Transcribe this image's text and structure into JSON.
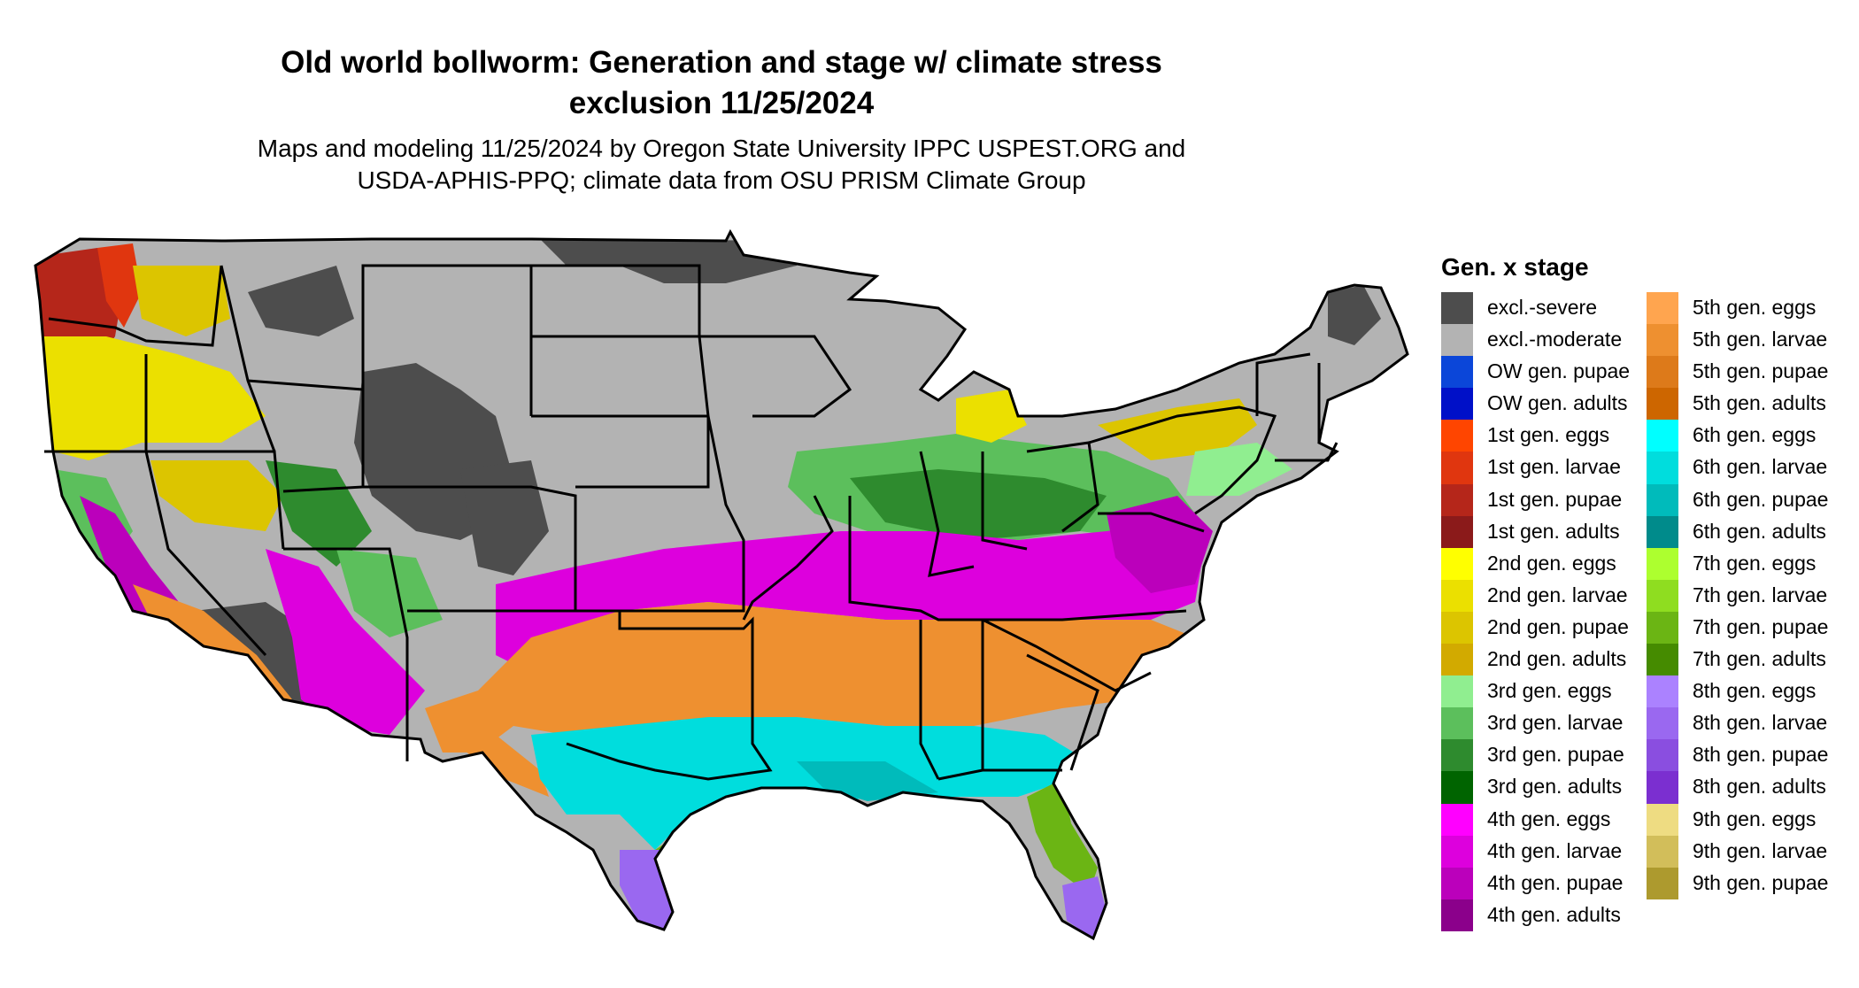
{
  "title": {
    "line1": "Old world bollworm: Generation and stage w/ climate stress",
    "line2": "exclusion 11/25/2024"
  },
  "subtitle": {
    "line1": "Maps and modeling 11/25/2024 by Oregon State University IPPC USPEST.ORG and",
    "line2": "USDA-APHIS-PPQ; climate data from OSU PRISM Climate Group"
  },
  "legend": {
    "title": "Gen. x stage",
    "col1": [
      {
        "label": "excl.-severe",
        "color": "#4d4d4d"
      },
      {
        "label": "excl.-moderate",
        "color": "#b3b3b3"
      },
      {
        "label": "OW gen. pupae",
        "color": "#0b46d9"
      },
      {
        "label": "OW gen. adults",
        "color": "#0010c8"
      },
      {
        "label": "1st gen. eggs",
        "color": "#ff4500"
      },
      {
        "label": "1st gen. larvae",
        "color": "#e0360f"
      },
      {
        "label": "1st gen. pupae",
        "color": "#b5261a"
      },
      {
        "label": "1st gen. adults",
        "color": "#8b1a1a"
      },
      {
        "label": "2nd gen. eggs",
        "color": "#ffff00"
      },
      {
        "label": "2nd gen. larvae",
        "color": "#ebe000"
      },
      {
        "label": "2nd gen. pupae",
        "color": "#dcc500"
      },
      {
        "label": "2nd gen. adults",
        "color": "#d2aa00"
      },
      {
        "label": "3rd gen. eggs",
        "color": "#90ee90"
      },
      {
        "label": "3rd gen. larvae",
        "color": "#5cbf5c"
      },
      {
        "label": "3rd gen. pupae",
        "color": "#2e8b2e"
      },
      {
        "label": "3rd gen. adults",
        "color": "#006400"
      },
      {
        "label": "4th gen. eggs",
        "color": "#ff00ff"
      },
      {
        "label": "4th gen. larvae",
        "color": "#dd00dd"
      },
      {
        "label": "4th gen. pupae",
        "color": "#bb00bb"
      },
      {
        "label": "4th gen. adults",
        "color": "#8b008b"
      }
    ],
    "col2": [
      {
        "label": "5th gen. eggs",
        "color": "#ffa54f"
      },
      {
        "label": "5th gen. larvae",
        "color": "#ee9030"
      },
      {
        "label": "5th gen. pupae",
        "color": "#dd7a1a"
      },
      {
        "label": "5th gen. adults",
        "color": "#cd6600"
      },
      {
        "label": "6th gen. eggs",
        "color": "#00ffff"
      },
      {
        "label": "6th gen. larvae",
        "color": "#00dddd"
      },
      {
        "label": "6th gen. pupae",
        "color": "#00bbbb"
      },
      {
        "label": "6th gen. adults",
        "color": "#008b8b"
      },
      {
        "label": "7th gen. eggs",
        "color": "#adff2f"
      },
      {
        "label": "7th gen. larvae",
        "color": "#8fdd20"
      },
      {
        "label": "7th gen. pupae",
        "color": "#6bb514"
      },
      {
        "label": "7th gen. adults",
        "color": "#458b00"
      },
      {
        "label": "8th gen. eggs",
        "color": "#ab82ff"
      },
      {
        "label": "8th gen. larvae",
        "color": "#9a68f0"
      },
      {
        "label": "8th gen. pupae",
        "color": "#8a4ee0"
      },
      {
        "label": "8th gen. adults",
        "color": "#7b2fd0"
      },
      {
        "label": "9th gen. eggs",
        "color": "#eedc82"
      },
      {
        "label": "9th gen. larvae",
        "color": "#d2be5a"
      },
      {
        "label": "9th gen. pupae",
        "color": "#ad9a2e"
      }
    ]
  }
}
